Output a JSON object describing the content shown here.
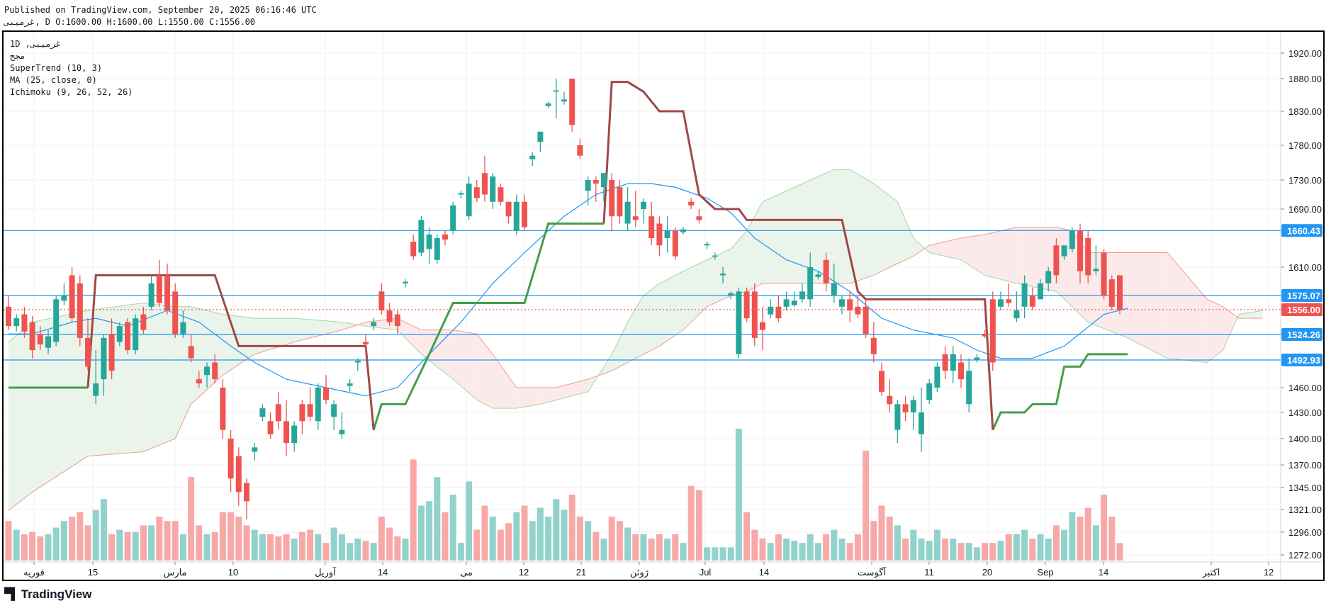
{
  "header": {
    "published": "Published on TradingView.com, September 20, 2025 06:16:46 UTC",
    "ohlc_line": "غرمیبی, D O:1600.00 H:1600.00 L:1550.00 C:1556.00"
  },
  "legend": {
    "symbol": "1D ,غرمیبی",
    "subtitle": "مجح",
    "supertrend": "SuperTrend (10, 3)",
    "ma": "MA (25, close, 0)",
    "ichimoku": "Ichimoku (9, 26, 52, 26)"
  },
  "branding": {
    "logo_text": "TradingView"
  },
  "colors": {
    "up": "#26a69a",
    "down": "#ef5350",
    "up_vol": "#92d2cc",
    "down_vol": "#f7a9a7",
    "st_up": "#43a047",
    "st_down": "#a04848",
    "ma": "#2196f3",
    "level": "#2196f3",
    "cloud_up": "#e8f3e8",
    "cloud_down": "#fce8e8"
  },
  "chart_data": {
    "type": "candlestick",
    "timeframe": "1D",
    "y_ticks": [
      "1920.00",
      "1880.00",
      "1830.00",
      "1780.00",
      "1730.00",
      "1690.00",
      "1610.00",
      "1460.00",
      "1430.00",
      "1400.00",
      "1370.00",
      "1345.00",
      "1321.00",
      "1296.00",
      "1272.00"
    ],
    "x_labels": [
      "فوریه",
      "15",
      "مارس",
      "10",
      "آوریل",
      "14",
      "می",
      "12",
      "21",
      "ژوئن",
      "Jul",
      "14",
      "آگوست",
      "11",
      "20",
      "Sep",
      "14",
      "اکتبر",
      "12"
    ],
    "price_tags": [
      {
        "label": "1660.43",
        "value": 1660.43,
        "kind": "level"
      },
      {
        "label": "1575.07",
        "value": 1575.07,
        "kind": "level"
      },
      {
        "label": "1524.26",
        "value": 1524.26,
        "kind": "level"
      },
      {
        "label": "1492.93",
        "value": 1492.93,
        "kind": "level"
      },
      {
        "label": "1556.00",
        "value": 1556.0,
        "kind": "last"
      }
    ],
    "ohlcv_fields": [
      "open",
      "high",
      "low",
      "close",
      "volume_rel"
    ],
    "candles": [
      [
        1560,
        1575,
        1530,
        1535,
        18
      ],
      [
        1535,
        1550,
        1528,
        1545,
        14
      ],
      [
        1550,
        1560,
        1520,
        1528,
        12
      ],
      [
        1540,
        1548,
        1495,
        1505,
        13
      ],
      [
        1525,
        1535,
        1505,
        1512,
        11
      ],
      [
        1508,
        1530,
        1500,
        1522,
        12
      ],
      [
        1515,
        1575,
        1510,
        1570,
        15
      ],
      [
        1568,
        1590,
        1562,
        1575,
        18
      ],
      [
        1600,
        1610,
        1540,
        1545,
        20
      ],
      [
        1590,
        1600,
        1510,
        1520,
        22
      ],
      [
        1520,
        1545,
        1480,
        1485,
        16
      ],
      [
        1450,
        1505,
        1440,
        1465,
        23
      ],
      [
        1470,
        1525,
        1450,
        1520,
        28
      ],
      [
        1525,
        1545,
        1470,
        1480,
        12
      ],
      [
        1515,
        1540,
        1510,
        1535,
        14
      ],
      [
        1540,
        1545,
        1500,
        1505,
        13
      ],
      [
        1505,
        1550,
        1500,
        1545,
        13
      ],
      [
        1550,
        1560,
        1525,
        1530,
        16
      ],
      [
        1560,
        1600,
        1555,
        1590,
        16
      ],
      [
        1600,
        1620,
        1560,
        1565,
        20
      ],
      [
        1600,
        1615,
        1550,
        1555,
        18
      ],
      [
        1580,
        1590,
        1520,
        1525,
        18
      ],
      [
        1525,
        1555,
        1520,
        1540,
        12
      ],
      [
        1510,
        1525,
        1490,
        1495,
        38
      ],
      [
        1470,
        1480,
        1460,
        1465,
        16
      ],
      [
        1475,
        1490,
        1460,
        1485,
        12
      ],
      [
        1490,
        1500,
        1465,
        1470,
        13
      ],
      [
        1460,
        1470,
        1400,
        1410,
        22
      ],
      [
        1400,
        1410,
        1340,
        1355,
        22
      ],
      [
        1380,
        1390,
        1325,
        1340,
        20
      ],
      [
        1350,
        1355,
        1310,
        1330,
        16
      ],
      [
        1385,
        1395,
        1375,
        1390,
        14
      ],
      [
        1425,
        1440,
        1420,
        1435,
        12
      ],
      [
        1420,
        1430,
        1400,
        1405,
        12
      ],
      [
        1440,
        1455,
        1410,
        1420,
        11
      ],
      [
        1420,
        1445,
        1380,
        1395,
        12
      ],
      [
        1395,
        1420,
        1385,
        1415,
        10
      ],
      [
        1440,
        1445,
        1405,
        1420,
        13
      ],
      [
        1440,
        1460,
        1420,
        1425,
        14
      ],
      [
        1420,
        1465,
        1410,
        1460,
        12
      ],
      [
        1460,
        1475,
        1440,
        1445,
        8
      ],
      [
        1425,
        1445,
        1410,
        1440,
        15
      ],
      [
        1405,
        1430,
        1400,
        1410,
        12
      ],
      [
        1462,
        1470,
        1455,
        1465,
        8
      ],
      [
        1490,
        1495,
        1480,
        1492,
        10
      ],
      [
        1515,
        1525,
        1500,
        1512,
        9
      ],
      [
        1535,
        1545,
        1530,
        1540,
        8
      ],
      [
        1580,
        1590,
        1550,
        1555,
        20
      ],
      [
        1555,
        1565,
        1535,
        1540,
        15
      ],
      [
        1550,
        1555,
        1525,
        1535,
        11
      ],
      [
        1590,
        1595,
        1585,
        1592,
        10
      ],
      [
        1645,
        1655,
        1620,
        1625,
        46
      ],
      [
        1630,
        1680,
        1625,
        1675,
        25
      ],
      [
        1635,
        1665,
        1615,
        1655,
        27
      ],
      [
        1620,
        1655,
        1615,
        1650,
        38
      ],
      [
        1655,
        1660,
        1640,
        1648,
        22
      ],
      [
        1660,
        1700,
        1655,
        1695,
        30
      ],
      [
        1710,
        1715,
        1705,
        1712,
        8
      ],
      [
        1680,
        1735,
        1675,
        1725,
        36
      ],
      [
        1720,
        1730,
        1700,
        1705,
        14
      ],
      [
        1740,
        1765,
        1700,
        1710,
        25
      ],
      [
        1700,
        1740,
        1690,
        1735,
        20
      ],
      [
        1720,
        1725,
        1695,
        1700,
        14
      ],
      [
        1700,
        1700,
        1670,
        1680,
        17
      ],
      [
        1660,
        1710,
        1655,
        1700,
        22
      ],
      [
        1700,
        1710,
        1660,
        1665,
        25
      ],
      [
        1760,
        1770,
        1750,
        1765,
        18
      ],
      [
        1785,
        1800,
        1770,
        1800,
        24
      ],
      [
        1838,
        1845,
        1835,
        1842,
        20
      ],
      [
        1860,
        1880,
        1820,
        1862,
        28
      ],
      [
        1845,
        1860,
        1840,
        1848,
        23
      ],
      [
        1880,
        1880,
        1800,
        1810,
        30
      ],
      [
        1780,
        1790,
        1760,
        1765,
        20
      ],
      [
        1715,
        1735,
        1695,
        1730,
        18
      ],
      [
        1730,
        1735,
        1700,
        1725,
        13
      ],
      [
        1720,
        1740,
        1700,
        1740,
        10
      ],
      [
        1730,
        1740,
        1660,
        1680,
        20
      ],
      [
        1720,
        1730,
        1670,
        1680,
        18
      ],
      [
        1670,
        1720,
        1660,
        1700,
        15
      ],
      [
        1680,
        1715,
        1665,
        1675,
        12
      ],
      [
        1690,
        1705,
        1670,
        1700,
        12
      ],
      [
        1680,
        1700,
        1640,
        1650,
        10
      ],
      [
        1670,
        1680,
        1625,
        1640,
        12
      ],
      [
        1650,
        1680,
        1630,
        1660,
        10
      ],
      [
        1660,
        1665,
        1620,
        1625,
        12
      ],
      [
        1658,
        1665,
        1655,
        1662,
        8
      ],
      [
        1700,
        1705,
        1690,
        1695,
        34
      ],
      [
        1680,
        1690,
        1670,
        1675,
        32
      ],
      [
        1640,
        1645,
        1635,
        1642,
        6
      ],
      [
        1625,
        1630,
        1620,
        1626,
        6
      ],
      [
        1600,
        1610,
        1590,
        1602,
        6
      ],
      [
        1575,
        1580,
        1570,
        1578,
        6
      ],
      [
        1500,
        1585,
        1495,
        1580,
        60
      ],
      [
        1580,
        1585,
        1540,
        1545,
        22
      ],
      [
        1580,
        1590,
        1510,
        1520,
        14
      ],
      [
        1540,
        1560,
        1505,
        1530,
        10
      ],
      [
        1550,
        1570,
        1545,
        1560,
        8
      ],
      [
        1560,
        1575,
        1540,
        1545,
        12
      ],
      [
        1560,
        1580,
        1555,
        1570,
        10
      ],
      [
        1562,
        1580,
        1560,
        1568,
        9
      ],
      [
        1570,
        1590,
        1565,
        1580,
        8
      ],
      [
        1570,
        1630,
        1560,
        1610,
        12
      ],
      [
        1598,
        1605,
        1595,
        1601,
        8
      ],
      [
        1620,
        1630,
        1580,
        1590,
        12
      ],
      [
        1575,
        1615,
        1565,
        1590,
        14
      ],
      [
        1560,
        1575,
        1550,
        1570,
        10
      ],
      [
        1570,
        1580,
        1540,
        1555,
        8
      ],
      [
        1560,
        1575,
        1545,
        1550,
        12
      ],
      [
        1560,
        1570,
        1520,
        1525,
        50
      ],
      [
        1520,
        1540,
        1490,
        1500,
        18
      ],
      [
        1480,
        1490,
        1450,
        1455,
        25
      ],
      [
        1450,
        1470,
        1430,
        1440,
        20
      ],
      [
        1410,
        1445,
        1395,
        1440,
        16
      ],
      [
        1440,
        1450,
        1420,
        1430,
        10
      ],
      [
        1430,
        1450,
        1410,
        1445,
        14
      ],
      [
        1405,
        1460,
        1385,
        1430,
        10
      ],
      [
        1445,
        1470,
        1440,
        1465,
        9
      ],
      [
        1460,
        1490,
        1455,
        1485,
        14
      ],
      [
        1500,
        1510,
        1470,
        1480,
        10
      ],
      [
        1480,
        1510,
        1465,
        1500,
        10
      ],
      [
        1490,
        1500,
        1460,
        1470,
        8
      ],
      [
        1440,
        1495,
        1430,
        1480,
        8
      ],
      [
        1493,
        1500,
        1490,
        1496,
        6
      ],
      [
        1525,
        1530,
        1520,
        1522,
        8
      ],
      [
        1570,
        1580,
        1480,
        1490,
        8
      ],
      [
        1560,
        1580,
        1555,
        1570,
        9
      ],
      [
        1570,
        1590,
        1560,
        1565,
        12
      ],
      [
        1545,
        1580,
        1540,
        1555,
        12
      ],
      [
        1560,
        1600,
        1545,
        1590,
        14
      ],
      [
        1575,
        1585,
        1555,
        1560,
        10
      ],
      [
        1570,
        1595,
        1570,
        1590,
        12
      ],
      [
        1590,
        1610,
        1580,
        1605,
        10
      ],
      [
        1640,
        1650,
        1590,
        1600,
        16
      ],
      [
        1625,
        1640,
        1620,
        1640,
        14
      ],
      [
        1635,
        1665,
        1630,
        1660,
        22
      ],
      [
        1660,
        1670,
        1590,
        1605,
        20
      ],
      [
        1650,
        1660,
        1590,
        1600,
        24
      ],
      [
        1605,
        1640,
        1600,
        1608,
        16
      ],
      [
        1630,
        1635,
        1570,
        1575,
        30
      ],
      [
        1595,
        1600,
        1555,
        1560,
        20
      ],
      [
        1600,
        1600,
        1550,
        1556,
        8
      ]
    ],
    "supertrend": {
      "up_segments": [
        [
          [
            0,
            1460
          ],
          [
            10,
            1460
          ]
        ],
        [
          [
            46,
            1410
          ],
          [
            47,
            1440
          ],
          [
            50,
            1440
          ],
          [
            53,
            1500
          ],
          [
            56,
            1565
          ],
          [
            65,
            1565
          ],
          [
            68,
            1670
          ],
          [
            75,
            1670
          ]
        ],
        [
          [
            124,
            1410
          ],
          [
            125,
            1430
          ],
          [
            128,
            1430
          ],
          [
            129,
            1440
          ],
          [
            132,
            1440
          ],
          [
            133,
            1485
          ],
          [
            135,
            1485
          ],
          [
            136,
            1500
          ],
          [
            141,
            1500
          ]
        ]
      ],
      "down_segments": [
        [
          [
            10,
            1460
          ],
          [
            11,
            1600
          ],
          [
            26,
            1600
          ],
          [
            29,
            1510
          ],
          [
            45,
            1510
          ],
          [
            46,
            1410
          ]
        ],
        [
          [
            75,
            1670
          ],
          [
            76,
            1875
          ],
          [
            78,
            1875
          ],
          [
            80,
            1860
          ],
          [
            82,
            1830
          ],
          [
            85,
            1830
          ],
          [
            87,
            1710
          ],
          [
            89,
            1690
          ],
          [
            92,
            1690
          ],
          [
            93,
            1675
          ],
          [
            105,
            1675
          ],
          [
            107,
            1580
          ],
          [
            108,
            1570
          ],
          [
            123,
            1570
          ],
          [
            124,
            1410
          ]
        ]
      ]
    },
    "ma25": [
      [
        0,
        1525
      ],
      [
        3,
        1525
      ],
      [
        8,
        1540
      ],
      [
        11,
        1545
      ],
      [
        15,
        1535
      ],
      [
        20,
        1555
      ],
      [
        24,
        1540
      ],
      [
        28,
        1510
      ],
      [
        31,
        1490
      ],
      [
        35,
        1470
      ],
      [
        40,
        1460
      ],
      [
        45,
        1450
      ],
      [
        49,
        1460
      ],
      [
        52,
        1490
      ],
      [
        57,
        1540
      ],
      [
        61,
        1590
      ],
      [
        65,
        1630
      ],
      [
        70,
        1680
      ],
      [
        74,
        1710
      ],
      [
        78,
        1725
      ],
      [
        81,
        1725
      ],
      [
        84,
        1720
      ],
      [
        88,
        1705
      ],
      [
        91,
        1685
      ],
      [
        94,
        1650
      ],
      [
        98,
        1620
      ],
      [
        102,
        1605
      ],
      [
        106,
        1580
      ],
      [
        110,
        1545
      ],
      [
        114,
        1530
      ],
      [
        119,
        1520
      ],
      [
        122,
        1505
      ],
      [
        125,
        1495
      ],
      [
        129,
        1495
      ],
      [
        133,
        1510
      ],
      [
        138,
        1550
      ],
      [
        141,
        1558
      ]
    ],
    "ichimoku": {
      "bar_index": [
        0,
        3,
        10,
        17,
        21,
        23,
        27,
        31,
        36,
        42,
        45,
        49,
        52,
        56,
        59,
        61,
        64,
        67,
        69,
        73,
        76,
        78,
        80,
        82,
        85,
        88,
        91,
        93,
        95,
        99,
        102,
        104,
        106,
        109,
        112,
        114,
        116,
        120,
        123,
        127,
        132,
        134,
        136,
        141,
        146,
        151,
        153,
        155,
        158
      ],
      "span_a": [
        1515,
        1540,
        1555,
        1565,
        1560,
        1560,
        1550,
        1545,
        1545,
        1540,
        1535,
        1530,
        1500,
        1470,
        1445,
        1435,
        1435,
        1440,
        1445,
        1455,
        1500,
        1540,
        1575,
        1590,
        1605,
        1620,
        1635,
        1660,
        1700,
        1720,
        1735,
        1745,
        1745,
        1725,
        1700,
        1650,
        1630,
        1620,
        1600,
        1590,
        1580,
        1560,
        1540,
        1520,
        1495,
        1490,
        1505,
        1550,
        1555
      ],
      "span_b": [
        1320,
        1340,
        1380,
        1385,
        1400,
        1440,
        1475,
        1500,
        1515,
        1530,
        1540,
        1545,
        1530,
        1530,
        1525,
        1500,
        1460,
        1460,
        1460,
        1470,
        1480,
        1490,
        1500,
        1510,
        1530,
        1560,
        1575,
        1580,
        1590,
        1590,
        1590,
        1590,
        1590,
        1600,
        1615,
        1625,
        1640,
        1650,
        1655,
        1665,
        1665,
        1660,
        1630,
        1630,
        1630,
        1570,
        1560,
        1545,
        1545
      ]
    }
  }
}
